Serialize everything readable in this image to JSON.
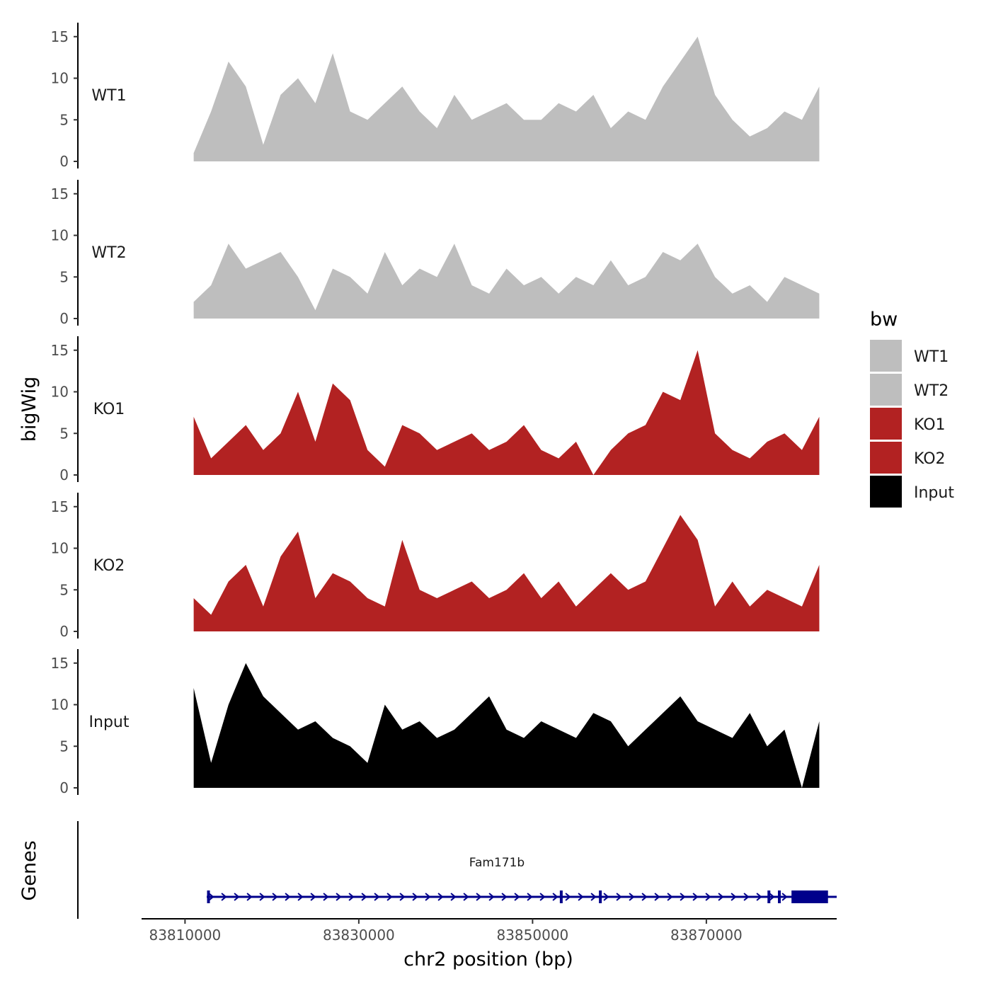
{
  "chart_data": {
    "type": "area",
    "title": "",
    "xlabel": "chr2 position (bp)",
    "ylabel": "bigWig",
    "genes_label": "Genes",
    "xlim": [
      83805000,
      83885000
    ],
    "x_ticks": [
      83810000,
      83830000,
      83850000,
      83870000
    ],
    "x_tick_labels": [
      "83810000",
      "83830000",
      "83850000",
      "83870000"
    ],
    "ylim": [
      0,
      16
    ],
    "y_ticks": [
      0,
      5,
      10,
      15
    ],
    "y_tick_labels": [
      "0",
      "5",
      "10",
      "15"
    ],
    "legend": {
      "title": "bw",
      "position": "right",
      "entries": [
        {
          "label": "WT1",
          "color": "#bebebe"
        },
        {
          "label": "WT2",
          "color": "#bebebe"
        },
        {
          "label": "KO1",
          "color": "#b22222"
        },
        {
          "label": "KO2",
          "color": "#b22222"
        },
        {
          "label": "Input",
          "color": "#000000"
        }
      ]
    },
    "x": [
      83811000,
      83813000,
      83815000,
      83817000,
      83819000,
      83821000,
      83823000,
      83825000,
      83827000,
      83829000,
      83831000,
      83833000,
      83835000,
      83837000,
      83839000,
      83841000,
      83843000,
      83845000,
      83847000,
      83849000,
      83851000,
      83853000,
      83855000,
      83857000,
      83859000,
      83861000,
      83863000,
      83865000,
      83867000,
      83869000,
      83871000,
      83873000,
      83875000,
      83877000,
      83879000,
      83881000,
      83883000
    ],
    "series": [
      {
        "name": "WT1",
        "color": "#bebebe",
        "values": [
          1,
          6,
          12,
          9,
          2,
          8,
          10,
          7,
          13,
          6,
          5,
          7,
          9,
          6,
          4,
          8,
          5,
          6,
          7,
          5,
          5,
          7,
          6,
          8,
          4,
          6,
          5,
          9,
          12,
          15,
          8,
          5,
          3,
          4,
          6,
          5,
          9
        ]
      },
      {
        "name": "WT2",
        "color": "#bebebe",
        "values": [
          2,
          4,
          9,
          6,
          7,
          8,
          5,
          1,
          6,
          5,
          3,
          8,
          4,
          6,
          5,
          9,
          4,
          3,
          6,
          4,
          5,
          3,
          5,
          4,
          7,
          4,
          5,
          8,
          7,
          9,
          5,
          3,
          4,
          2,
          5,
          4,
          3
        ]
      },
      {
        "name": "KO1",
        "color": "#b22222",
        "values": [
          7,
          2,
          4,
          6,
          3,
          5,
          10,
          4,
          11,
          9,
          3,
          1,
          6,
          5,
          3,
          4,
          5,
          3,
          4,
          6,
          3,
          2,
          4,
          0,
          3,
          5,
          6,
          10,
          9,
          15,
          5,
          3,
          2,
          4,
          5,
          3,
          7
        ]
      },
      {
        "name": "KO2",
        "color": "#b22222",
        "values": [
          4,
          2,
          6,
          8,
          3,
          9,
          12,
          4,
          7,
          6,
          4,
          3,
          11,
          5,
          4,
          5,
          6,
          4,
          5,
          7,
          4,
          6,
          3,
          5,
          7,
          5,
          6,
          10,
          14,
          11,
          3,
          6,
          3,
          5,
          4,
          3,
          8
        ]
      },
      {
        "name": "Input",
        "color": "#000000",
        "values": [
          12,
          3,
          10,
          15,
          11,
          9,
          7,
          8,
          6,
          5,
          3,
          10,
          7,
          8,
          6,
          7,
          9,
          11,
          7,
          6,
          8,
          7,
          6,
          9,
          8,
          5,
          7,
          9,
          11,
          8,
          7,
          6,
          9,
          5,
          7,
          0,
          8
        ]
      }
    ],
    "gene": {
      "name": "Fam171b",
      "color": "#00008b",
      "start": 83812500,
      "end": 83885000,
      "strand": "+",
      "thick_start": 83879800,
      "thick_end": 83884000
    }
  }
}
